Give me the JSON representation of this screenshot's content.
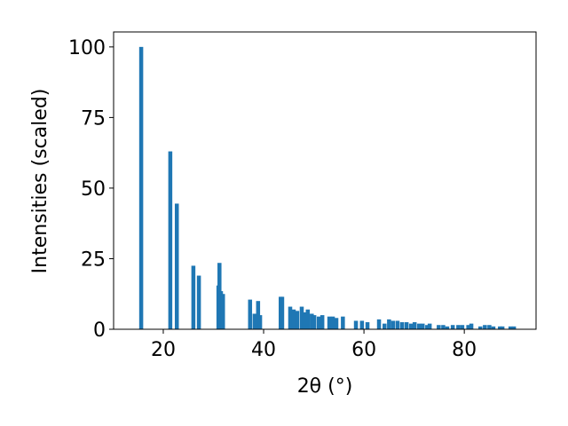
{
  "chart_data": {
    "type": "bar",
    "xlabel": "2θ (°)",
    "ylabel": "Intensities (scaled)",
    "color": "#1f77b4",
    "x": [
      15.6,
      21.4,
      22.7,
      26.0,
      27.1,
      31.0,
      31.2,
      31.5,
      31.9,
      37.3,
      38.2,
      38.9,
      39.3,
      43.4,
      43.7,
      45.3,
      46.0,
      46.7,
      47.6,
      48.1,
      48.8,
      49.6,
      50.1,
      51.0,
      51.7,
      53.1,
      53.8,
      54.5,
      55.8,
      58.4,
      59.6,
      60.7,
      63.0,
      64.1,
      65.0,
      65.8,
      66.7,
      67.6,
      68.5,
      69.4,
      70.1,
      71.0,
      71.7,
      72.6,
      73.1,
      74.9,
      75.8,
      76.6,
      77.7,
      78.8,
      79.6,
      80.8,
      81.4,
      83.2,
      84.1,
      85.0,
      85.8,
      87.1,
      87.6,
      89.2,
      89.9
    ],
    "values": [
      100,
      63,
      44.5,
      22.5,
      19,
      15.5,
      23.5,
      13.5,
      12.5,
      10.5,
      5.5,
      10,
      5,
      11.5,
      11.5,
      8,
      7,
      6.5,
      8,
      6,
      7,
      5.5,
      5,
      4.5,
      5,
      4.5,
      4.5,
      4,
      4.5,
      3,
      3,
      2.5,
      3.5,
      2,
      3.5,
      3,
      3,
      2.5,
      2.5,
      2,
      2.5,
      2,
      2,
      1.5,
      2,
      1.5,
      1.5,
      1,
      1.5,
      1.5,
      1.5,
      1.5,
      2,
      1,
      1.5,
      1.5,
      1,
      1,
      1,
      1,
      1
    ],
    "xlim": [
      10.1,
      94.3
    ],
    "ylim": [
      0,
      105.3
    ],
    "xticks": [
      20,
      40,
      60,
      80
    ],
    "yticks": [
      0,
      25,
      50,
      75,
      100
    ]
  }
}
